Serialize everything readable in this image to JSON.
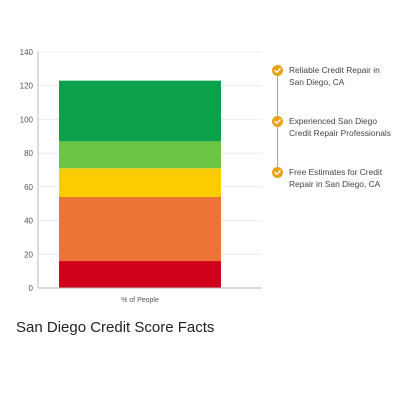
{
  "chart_data": {
    "type": "bar",
    "stacked": true,
    "categories": [
      "% of People"
    ],
    "series": [
      {
        "values": [
          16
        ],
        "color": "#d0021b"
      },
      {
        "values": [
          38
        ],
        "color": "#ec7235"
      },
      {
        "values": [
          17
        ],
        "color": "#fdcc00"
      },
      {
        "values": [
          16
        ],
        "color": "#6cc644"
      },
      {
        "values": [
          36
        ],
        "color": "#0aa14a"
      }
    ],
    "ylim": [
      0,
      140
    ],
    "yticks": [
      0,
      20,
      40,
      60,
      80,
      100,
      120,
      140
    ],
    "grid": true,
    "legend": "none",
    "title": "",
    "xlabel": "",
    "ylabel": ""
  },
  "features": [
    {
      "lines": [
        "Reliable Credit Repair in",
        "San Diego, CA"
      ],
      "icon": "check-icon"
    },
    {
      "lines": [
        "Experienced San Diego",
        "Credit Repair Professionals"
      ],
      "icon": "check-icon"
    },
    {
      "lines": [
        "Free Estimates for Credit",
        "Repair in San Diego, CA"
      ],
      "icon": "check-icon"
    }
  ],
  "caption": "San Diego Credit Score Facts",
  "accent_color": "#e8a317"
}
